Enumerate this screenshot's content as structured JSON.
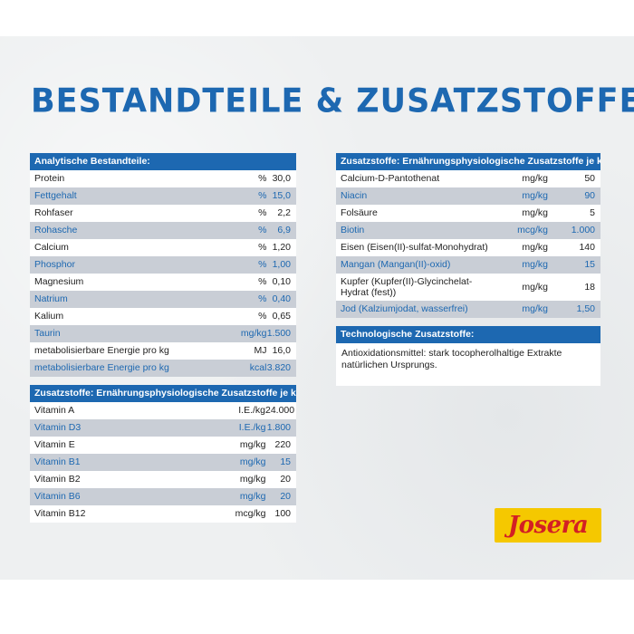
{
  "title": "BESTANDTEILE & ZUSATZSTOFFE",
  "analytic": {
    "header": "Analytische Bestandteile:",
    "rows": [
      {
        "name": "Protein",
        "unit": "%",
        "value": "30,0"
      },
      {
        "name": "Fettgehalt",
        "unit": "%",
        "value": "15,0"
      },
      {
        "name": "Rohfaser",
        "unit": "%",
        "value": "2,2"
      },
      {
        "name": "Rohasche",
        "unit": "%",
        "value": "6,9"
      },
      {
        "name": "Calcium",
        "unit": "%",
        "value": "1,20"
      },
      {
        "name": "Phosphor",
        "unit": "%",
        "value": "1,00"
      },
      {
        "name": "Magnesium",
        "unit": "%",
        "value": "0,10"
      },
      {
        "name": "Natrium",
        "unit": "%",
        "value": "0,40"
      },
      {
        "name": "Kalium",
        "unit": "%",
        "value": "0,65"
      },
      {
        "name": "Taurin",
        "unit": "mg/kg",
        "value": "1.500"
      },
      {
        "name": "metabolisierbare Energie pro kg",
        "unit": "MJ",
        "value": "16,0"
      },
      {
        "name": "metabolisierbare Energie pro kg",
        "unit": "kcal",
        "value": "3.820"
      }
    ]
  },
  "additives_left": {
    "header": "Zusatzstoffe: Ernährungsphysiologische Zusatzstoffe je kg:",
    "rows": [
      {
        "name": "Vitamin A",
        "unit": "I.E./kg",
        "value": "24.000"
      },
      {
        "name": "Vitamin D3",
        "unit": "I.E./kg",
        "value": "1.800"
      },
      {
        "name": "Vitamin E",
        "unit": "mg/kg",
        "value": "220"
      },
      {
        "name": "Vitamin B1",
        "unit": "mg/kg",
        "value": "15"
      },
      {
        "name": "Vitamin B2",
        "unit": "mg/kg",
        "value": "20"
      },
      {
        "name": "Vitamin B6",
        "unit": "mg/kg",
        "value": "20"
      },
      {
        "name": "Vitamin B12",
        "unit": "mcg/kg",
        "value": "100"
      }
    ]
  },
  "additives_right": {
    "header": "Zusatzstoffe: Ernährungsphysiologische Zusatzstoffe je kg:",
    "rows": [
      {
        "name": "Calcium-D-Pantothenat",
        "unit": "mg/kg",
        "value": "50"
      },
      {
        "name": "Niacin",
        "unit": "mg/kg",
        "value": "90"
      },
      {
        "name": "Folsäure",
        "unit": "mg/kg",
        "value": "5"
      },
      {
        "name": "Biotin",
        "unit": "mcg/kg",
        "value": "1.000"
      },
      {
        "name": "Eisen (Eisen(II)-sulfat-Monohydrat)",
        "unit": "mg/kg",
        "value": "140"
      },
      {
        "name": "Mangan (Mangan(II)-oxid)",
        "unit": "mg/kg",
        "value": "15"
      },
      {
        "name": "Kupfer (Kupfer(II)-Glycinchelat-Hydrat (fest))",
        "unit": "mg/kg",
        "value": "18"
      },
      {
        "name": "Jod (Kalziumjodat, wasserfrei)",
        "unit": "mg/kg",
        "value": "1,50"
      }
    ]
  },
  "technological": {
    "header": "Technologische Zusatzstoffe:",
    "text": "Antioxidationsmittel: stark tocopherolhaltige Extrakte natürlichen Ursprungs."
  },
  "logo": {
    "text": "Josera"
  },
  "colors": {
    "brand_blue": "#1d68b1",
    "row_alt": "#c9ced6",
    "logo_bg": "#f5c800",
    "logo_text": "#d31f24"
  }
}
